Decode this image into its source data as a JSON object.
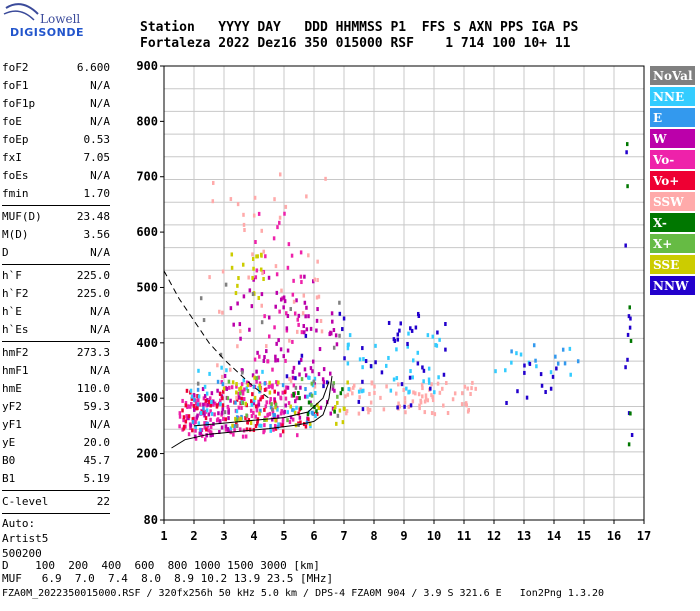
{
  "logo": {
    "line1": "Lowell",
    "line2": "DIGISONDE"
  },
  "header": {
    "line1": "Station   YYYY DAY   DDD HHMMSS P1  FFS S AXN PPS IGA PS",
    "line2": "Fortaleza 2022 Dez16 350 015000 RSF    1 714 100 10+ 11"
  },
  "params": {
    "group1": [
      {
        "name": "foF2",
        "value": "6.600"
      },
      {
        "name": "foF1",
        "value": "N/A"
      },
      {
        "name": "foF1p",
        "value": "N/A"
      },
      {
        "name": "foE",
        "value": "N/A"
      },
      {
        "name": "foEp",
        "value": "0.53"
      },
      {
        "name": "fxI",
        "value": "7.05"
      },
      {
        "name": "foEs",
        "value": "N/A"
      },
      {
        "name": "fmin",
        "value": "1.70"
      }
    ],
    "group2": [
      {
        "name": "MUF(D)",
        "value": "23.48"
      },
      {
        "name": "M(D)",
        "value": "3.56"
      },
      {
        "name": "D",
        "value": "N/A"
      }
    ],
    "group3": [
      {
        "name": "h`F",
        "value": "225.0"
      },
      {
        "name": "h`F2",
        "value": "225.0"
      },
      {
        "name": "h`E",
        "value": "N/A"
      },
      {
        "name": "h`Es",
        "value": "N/A"
      }
    ],
    "group4": [
      {
        "name": "hmF2",
        "value": "273.3"
      },
      {
        "name": "hmF1",
        "value": "N/A"
      },
      {
        "name": "hmE",
        "value": "110.0"
      },
      {
        "name": "yF2",
        "value": "59.3"
      },
      {
        "name": "yF1",
        "value": "N/A"
      },
      {
        "name": "yE",
        "value": "20.0"
      },
      {
        "name": "B0",
        "value": "45.7"
      },
      {
        "name": "B1",
        "value": "5.19"
      }
    ],
    "group5": [
      {
        "name": "C-level",
        "value": "22"
      }
    ],
    "auto": [
      "Auto:",
      "Artist5",
      "500200"
    ]
  },
  "footer": {
    "line1": "D    100  200  400  600  800 1000 1500 3000 [km]",
    "line2": "MUF   6.9  7.0  7.4  8.0  8.9 10.2 13.9 23.5 [MHz]",
    "line3": "FZA0M_2022350015000.RSF / 320fx256h 50 kHz 5.0 km / DPS-4 FZA0M 904 / 3.9 S 321.6 E   Ion2Png 1.3.20"
  },
  "chart_data": {
    "type": "scatter",
    "xlim": [
      1,
      17
    ],
    "ylim": [
      80,
      900
    ],
    "xticks": [
      1,
      2,
      3,
      4,
      5,
      6,
      7,
      8,
      9,
      10,
      11,
      12,
      13,
      14,
      15,
      16,
      17
    ],
    "yticks": [
      80,
      200,
      300,
      400,
      500,
      600,
      700,
      800,
      900
    ],
    "grid": true,
    "legend_placement": "right",
    "legend": [
      {
        "name": "NoVal",
        "color": "#808080"
      },
      {
        "name": "NNE",
        "color": "#33ccff"
      },
      {
        "name": "E",
        "color": "#3399ee"
      },
      {
        "name": "W",
        "color": "#bb00aa"
      },
      {
        "name": "Vo-",
        "color": "#ee22aa"
      },
      {
        "name": "Vo+",
        "color": "#ee0033"
      },
      {
        "name": "SSW",
        "color": "#ffaaaa"
      },
      {
        "name": "X-",
        "color": "#007700"
      },
      {
        "name": "X+",
        "color": "#66bb44"
      },
      {
        "name": "SSE",
        "color": "#cccc00"
      },
      {
        "name": "NNW",
        "color": "#2200cc"
      }
    ],
    "series": [
      {
        "name": "Vo-",
        "type": "clusters",
        "values": [
          {
            "x": [
              1.5,
              2.8
            ],
            "y": [
              225,
              300
            ],
            "n": 60
          },
          {
            "x": [
              2.8,
              5.5
            ],
            "y": [
              230,
              330
            ],
            "n": 90
          },
          {
            "x": [
              4.0,
              5.6
            ],
            "y": [
              270,
              640
            ],
            "n": 50
          }
        ]
      },
      {
        "name": "W",
        "type": "clusters",
        "values": [
          {
            "x": [
              1.8,
              3.2
            ],
            "y": [
              230,
              320
            ],
            "n": 45
          },
          {
            "x": [
              3.0,
              6.0
            ],
            "y": [
              260,
              520
            ],
            "n": 60
          },
          {
            "x": [
              4.5,
              6.8
            ],
            "y": [
              270,
              470
            ],
            "n": 45
          }
        ]
      },
      {
        "name": "Vo+",
        "type": "clusters",
        "values": [
          {
            "x": [
              1.6,
              6.2
            ],
            "y": [
              240,
              320
            ],
            "n": 70
          }
        ]
      },
      {
        "name": "SSW",
        "type": "clusters",
        "values": [
          {
            "x": [
              7.0,
              11.4
            ],
            "y": [
              270,
              330
            ],
            "n": 80
          },
          {
            "x": [
              2.5,
              6.5
            ],
            "y": [
              300,
              720
            ],
            "n": 50
          }
        ]
      },
      {
        "name": "NNE",
        "type": "clusters",
        "values": [
          {
            "x": [
              1.8,
              6.2
            ],
            "y": [
              240,
              360
            ],
            "n": 45
          },
          {
            "x": [
              7.0,
              10.4
            ],
            "y": [
              310,
              420
            ],
            "n": 40
          },
          {
            "x": [
              12.0,
              15.0
            ],
            "y": [
              340,
              390
            ],
            "n": 10
          }
        ]
      },
      {
        "name": "E",
        "type": "clusters",
        "values": [
          {
            "x": [
              1.6,
              6.0
            ],
            "y": [
              240,
              330
            ],
            "n": 30
          },
          {
            "x": [
              12.3,
              14.8
            ],
            "y": [
              360,
              400
            ],
            "n": 8
          }
        ]
      },
      {
        "name": "NNW",
        "type": "clusters",
        "values": [
          {
            "x": [
              5.0,
              10.4
            ],
            "y": [
              280,
              470
            ],
            "n": 45
          },
          {
            "x": [
              12.4,
              14.5
            ],
            "y": [
              290,
              370
            ],
            "n": 12
          },
          {
            "x": [
              16.3,
              16.6
            ],
            "y": [
              230,
              790
            ],
            "n": 10
          }
        ]
      },
      {
        "name": "SSE",
        "type": "clusters",
        "values": [
          {
            "x": [
              2.8,
              7.2
            ],
            "y": [
              250,
              340
            ],
            "n": 40
          },
          {
            "x": [
              3.0,
              4.5
            ],
            "y": [
              480,
              560
            ],
            "n": 18
          }
        ]
      },
      {
        "name": "X-",
        "type": "clusters",
        "values": [
          {
            "x": [
              5.2,
              7.0
            ],
            "y": [
              270,
              320
            ],
            "n": 12
          },
          {
            "x": [
              16.3,
              16.6
            ],
            "y": [
              190,
              780
            ],
            "n": 6
          }
        ]
      },
      {
        "name": "X+",
        "type": "clusters",
        "values": [
          {
            "x": [
              3.0,
              7.0
            ],
            "y": [
              260,
              340
            ],
            "n": 18
          }
        ]
      },
      {
        "name": "NoVal",
        "type": "clusters",
        "values": [
          {
            "x": [
              1.5,
              7.0
            ],
            "y": [
              240,
              520
            ],
            "n": 20
          }
        ]
      }
    ],
    "curves": [
      {
        "name": "profile_solid",
        "style": "solid",
        "points": [
          [
            1.25,
            210
          ],
          [
            1.7,
            225
          ],
          [
            2.5,
            235
          ],
          [
            3.5,
            240
          ],
          [
            4.5,
            245
          ],
          [
            5.5,
            252
          ],
          [
            6.0,
            258
          ],
          [
            6.3,
            270
          ],
          [
            6.5,
            300
          ],
          [
            6.6,
            340
          ]
        ]
      },
      {
        "name": "profile_solid_upper",
        "style": "solid",
        "points": [
          [
            2.0,
            250
          ],
          [
            3.0,
            255
          ],
          [
            4.0,
            260
          ],
          [
            5.0,
            265
          ],
          [
            5.8,
            275
          ],
          [
            6.3,
            300
          ],
          [
            6.5,
            330
          ]
        ]
      },
      {
        "name": "profile_dashed",
        "style": "dashed",
        "points": [
          [
            1.0,
            530
          ],
          [
            1.5,
            480
          ],
          [
            2.0,
            440
          ],
          [
            2.5,
            400
          ],
          [
            3.0,
            370
          ],
          [
            3.5,
            345
          ],
          [
            4.0,
            320
          ],
          [
            4.5,
            300
          ]
        ]
      }
    ]
  }
}
